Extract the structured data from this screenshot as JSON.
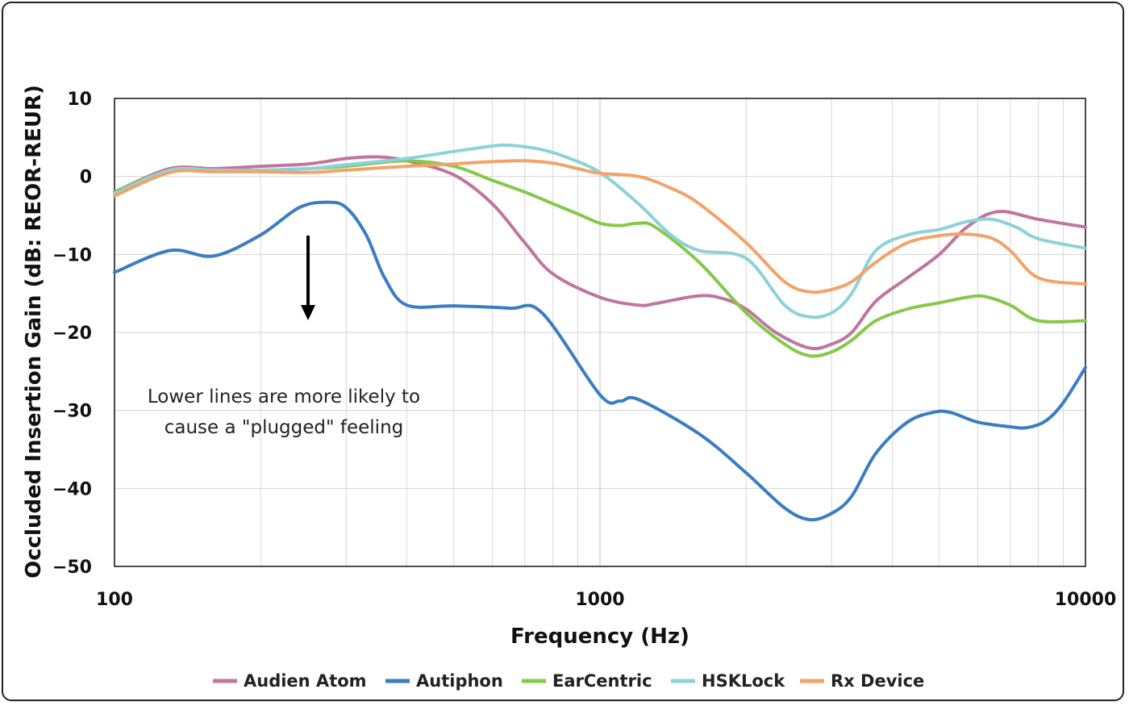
{
  "chart_data": {
    "type": "line",
    "title": "",
    "xlabel": "Frequency (Hz)",
    "ylabel": "Occluded Insertion Gain (dB: REOR-REUR)",
    "xscale": "log",
    "xlim": [
      100,
      10000
    ],
    "ylim": [
      -50,
      10
    ],
    "x_ticks": [
      "100",
      "1000",
      "10000"
    ],
    "y_ticks": [
      "10",
      "0",
      "−10",
      "−20",
      "−30",
      "−40",
      "−50"
    ],
    "grid": true,
    "legend_position": "bottom",
    "annotation": [
      "Lower lines are more likely to",
      "cause a \"plugged\" feeling"
    ],
    "annotation_arrow": "down",
    "series": [
      {
        "name": "Audien Atom",
        "color": "#C0759F",
        "points": [
          [
            100,
            -2.0
          ],
          [
            130,
            1.0
          ],
          [
            160,
            1.0
          ],
          [
            200,
            1.3
          ],
          [
            250,
            1.6
          ],
          [
            300,
            2.3
          ],
          [
            350,
            2.5
          ],
          [
            400,
            2.0
          ],
          [
            500,
            0.2
          ],
          [
            600,
            -3.5
          ],
          [
            700,
            -8.5
          ],
          [
            800,
            -12.5
          ],
          [
            1000,
            -15.5
          ],
          [
            1200,
            -16.5
          ],
          [
            1300,
            -16.3
          ],
          [
            1600,
            -15.3
          ],
          [
            1800,
            -15.7
          ],
          [
            2000,
            -17.0
          ],
          [
            2300,
            -20.0
          ],
          [
            2700,
            -22.0
          ],
          [
            3000,
            -21.5
          ],
          [
            3300,
            -20.0
          ],
          [
            3700,
            -16.0
          ],
          [
            4300,
            -13.0
          ],
          [
            5000,
            -10.0
          ],
          [
            5700,
            -6.5
          ],
          [
            6600,
            -4.5
          ],
          [
            8000,
            -5.5
          ],
          [
            10000,
            -6.5
          ]
        ]
      },
      {
        "name": "Autiphon",
        "color": "#3A7DC2",
        "points": [
          [
            100,
            -12.3
          ],
          [
            130,
            -9.5
          ],
          [
            160,
            -10.2
          ],
          [
            200,
            -7.5
          ],
          [
            240,
            -4.0
          ],
          [
            275,
            -3.3
          ],
          [
            300,
            -4.0
          ],
          [
            330,
            -7.5
          ],
          [
            360,
            -13.0
          ],
          [
            400,
            -16.5
          ],
          [
            500,
            -16.6
          ],
          [
            650,
            -16.9
          ],
          [
            760,
            -17.5
          ],
          [
            1000,
            -28.0
          ],
          [
            1100,
            -28.8
          ],
          [
            1200,
            -28.6
          ],
          [
            1600,
            -33.0
          ],
          [
            2000,
            -38.0
          ],
          [
            2400,
            -42.5
          ],
          [
            2700,
            -44.0
          ],
          [
            3000,
            -43.2
          ],
          [
            3300,
            -41.0
          ],
          [
            3700,
            -35.5
          ],
          [
            4300,
            -31.5
          ],
          [
            4900,
            -30.2
          ],
          [
            5300,
            -30.3
          ],
          [
            6000,
            -31.5
          ],
          [
            7000,
            -32.1
          ],
          [
            7600,
            -32.2
          ],
          [
            8300,
            -31.3
          ],
          [
            9000,
            -29.0
          ],
          [
            10000,
            -24.5
          ]
        ]
      },
      {
        "name": "EarCentric",
        "color": "#85C94A",
        "points": [
          [
            100,
            -2.0
          ],
          [
            130,
            0.8
          ],
          [
            160,
            0.8
          ],
          [
            200,
            0.8
          ],
          [
            250,
            1.0
          ],
          [
            300,
            1.3
          ],
          [
            400,
            2.0
          ],
          [
            500,
            1.3
          ],
          [
            600,
            -0.5
          ],
          [
            700,
            -2.0
          ],
          [
            800,
            -3.5
          ],
          [
            900,
            -4.8
          ],
          [
            1000,
            -6.0
          ],
          [
            1100,
            -6.3
          ],
          [
            1200,
            -6.0
          ],
          [
            1300,
            -6.5
          ],
          [
            1600,
            -11.0
          ],
          [
            2000,
            -17.5
          ],
          [
            2400,
            -21.5
          ],
          [
            2700,
            -23.0
          ],
          [
            3000,
            -22.5
          ],
          [
            3300,
            -21.0
          ],
          [
            3700,
            -18.5
          ],
          [
            4300,
            -17.0
          ],
          [
            5000,
            -16.2
          ],
          [
            5700,
            -15.5
          ],
          [
            6200,
            -15.4
          ],
          [
            7000,
            -16.5
          ],
          [
            8000,
            -18.5
          ],
          [
            10000,
            -18.5
          ]
        ]
      },
      {
        "name": "HSKLock",
        "color": "#8CD2D8",
        "points": [
          [
            100,
            -2.2
          ],
          [
            130,
            0.8
          ],
          [
            160,
            0.8
          ],
          [
            200,
            0.8
          ],
          [
            250,
            1.0
          ],
          [
            300,
            1.5
          ],
          [
            400,
            2.3
          ],
          [
            500,
            3.2
          ],
          [
            600,
            3.9
          ],
          [
            650,
            4.0
          ],
          [
            750,
            3.5
          ],
          [
            850,
            2.5
          ],
          [
            1000,
            0.5
          ],
          [
            1200,
            -3.5
          ],
          [
            1400,
            -7.5
          ],
          [
            1600,
            -9.5
          ],
          [
            2000,
            -10.5
          ],
          [
            2400,
            -16.5
          ],
          [
            2700,
            -18.0
          ],
          [
            3000,
            -17.5
          ],
          [
            3300,
            -15.0
          ],
          [
            3700,
            -9.5
          ],
          [
            4300,
            -7.5
          ],
          [
            5000,
            -6.8
          ],
          [
            5700,
            -5.8
          ],
          [
            6400,
            -5.5
          ],
          [
            7200,
            -6.5
          ],
          [
            8000,
            -8.0
          ],
          [
            10000,
            -9.2
          ]
        ]
      },
      {
        "name": "Rx Device",
        "color": "#F2A36A",
        "points": [
          [
            100,
            -2.5
          ],
          [
            130,
            0.5
          ],
          [
            160,
            0.6
          ],
          [
            200,
            0.6
          ],
          [
            250,
            0.5
          ],
          [
            300,
            0.8
          ],
          [
            400,
            1.3
          ],
          [
            500,
            1.6
          ],
          [
            600,
            1.9
          ],
          [
            700,
            2.0
          ],
          [
            800,
            1.7
          ],
          [
            900,
            1.0
          ],
          [
            1000,
            0.4
          ],
          [
            1200,
            0.0
          ],
          [
            1400,
            -1.5
          ],
          [
            1600,
            -3.5
          ],
          [
            2000,
            -8.5
          ],
          [
            2400,
            -13.5
          ],
          [
            2700,
            -14.8
          ],
          [
            3000,
            -14.5
          ],
          [
            3300,
            -13.5
          ],
          [
            3700,
            -11.0
          ],
          [
            4300,
            -8.5
          ],
          [
            5000,
            -7.6
          ],
          [
            5700,
            -7.4
          ],
          [
            6400,
            -7.9
          ],
          [
            7000,
            -9.5
          ],
          [
            8000,
            -13.0
          ],
          [
            10000,
            -13.8
          ]
        ]
      }
    ]
  }
}
